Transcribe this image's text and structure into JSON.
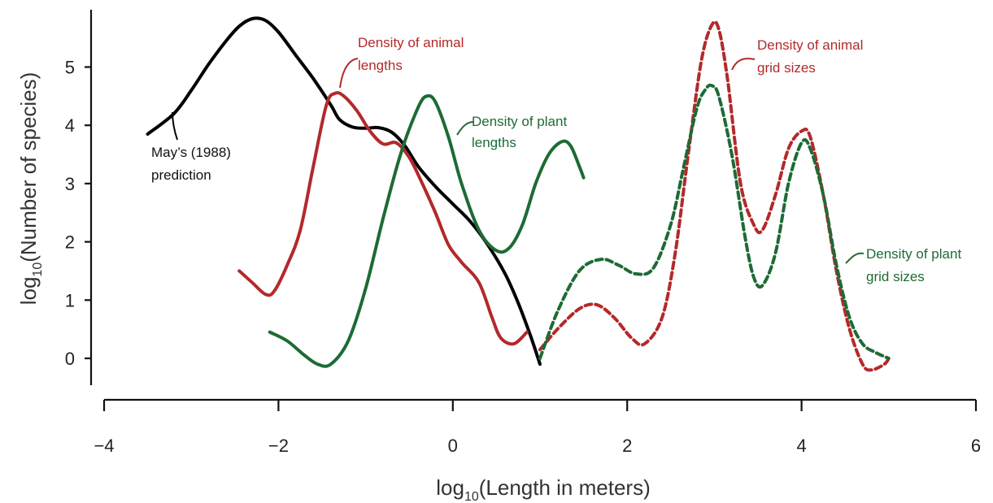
{
  "chart_data": {
    "type": "line",
    "xlabel": {
      "prefix": "log",
      "sub": "10",
      "suffix": "(Length in meters)"
    },
    "ylabel": {
      "prefix": "log",
      "sub": "10",
      "suffix": "(Number of species)"
    },
    "xlim": [
      -4,
      6
    ],
    "ylim": [
      -0.3,
      5.9
    ],
    "x_ticks": [
      -4,
      -2,
      0,
      2,
      4,
      6
    ],
    "x_tick_labels": [
      "−4",
      "−2",
      "0",
      "2",
      "4",
      "6"
    ],
    "y_ticks": [
      0,
      1,
      2,
      3,
      4,
      5
    ],
    "y_tick_labels": [
      "0",
      "1",
      "2",
      "3",
      "4",
      "5"
    ],
    "colors": {
      "black": "#000000",
      "red": "#b3292b",
      "green": "#1d6b35"
    },
    "series": [
      {
        "key": "may",
        "color": "black",
        "dashed": false,
        "label_lines": [
          "May’s (1988)",
          "prediction"
        ],
        "x": [
          -3.5,
          -3.2,
          -3.0,
          -2.8,
          -2.6,
          -2.45,
          -2.3,
          -2.15,
          -2.0,
          -1.8,
          -1.6,
          -1.4,
          -1.3,
          -1.15,
          -1.0,
          -0.85,
          -0.7,
          -0.55,
          -0.4,
          -0.2,
          0.0,
          0.2,
          0.4,
          0.6,
          0.75,
          0.9,
          1.0
        ],
        "y": [
          3.85,
          4.2,
          4.6,
          5.05,
          5.45,
          5.7,
          5.83,
          5.8,
          5.6,
          5.2,
          4.8,
          4.35,
          4.1,
          3.97,
          3.95,
          3.96,
          3.88,
          3.65,
          3.3,
          2.95,
          2.65,
          2.35,
          1.95,
          1.45,
          0.95,
          0.35,
          -0.1
        ]
      },
      {
        "key": "animal_lengths",
        "color": "red",
        "dashed": false,
        "label_lines": [
          "Density of animal",
          "lengths"
        ],
        "x": [
          -2.45,
          -2.3,
          -2.15,
          -2.05,
          -1.9,
          -1.75,
          -1.6,
          -1.45,
          -1.35,
          -1.25,
          -1.1,
          -0.95,
          -0.8,
          -0.65,
          -0.5,
          -0.35,
          -0.2,
          -0.05,
          0.1,
          0.3,
          0.45,
          0.55,
          0.7,
          0.85
        ],
        "y": [
          1.5,
          1.3,
          1.1,
          1.15,
          1.6,
          2.2,
          3.3,
          4.35,
          4.55,
          4.5,
          4.25,
          3.9,
          3.68,
          3.7,
          3.45,
          3.0,
          2.5,
          1.95,
          1.65,
          1.3,
          0.7,
          0.35,
          0.25,
          0.45
        ]
      },
      {
        "key": "plant_lengths",
        "color": "green",
        "dashed": false,
        "label_lines": [
          "Density of plant",
          "lengths"
        ],
        "x": [
          -2.1,
          -1.9,
          -1.7,
          -1.55,
          -1.4,
          -1.2,
          -1.0,
          -0.8,
          -0.6,
          -0.4,
          -0.3,
          -0.2,
          -0.05,
          0.1,
          0.3,
          0.5,
          0.65,
          0.8,
          0.95,
          1.1,
          1.25,
          1.35,
          1.45,
          1.5
        ],
        "y": [
          0.45,
          0.3,
          0.05,
          -0.1,
          -0.1,
          0.3,
          1.2,
          2.4,
          3.5,
          4.3,
          4.5,
          4.4,
          3.8,
          3.0,
          2.2,
          1.85,
          1.9,
          2.3,
          3.0,
          3.5,
          3.72,
          3.65,
          3.3,
          3.1
        ]
      },
      {
        "key": "animal_grid",
        "color": "red",
        "dashed": true,
        "label_lines": [
          "Density of animal",
          "grid sizes"
        ],
        "x": [
          1.0,
          1.2,
          1.45,
          1.65,
          1.85,
          2.05,
          2.2,
          2.4,
          2.55,
          2.7,
          2.85,
          2.97,
          3.05,
          3.15,
          3.3,
          3.45,
          3.55,
          3.7,
          3.85,
          4.0,
          4.1,
          4.25,
          4.4,
          4.55,
          4.7,
          4.8,
          4.95,
          5.0
        ],
        "y": [
          0.15,
          0.5,
          0.85,
          0.92,
          0.7,
          0.35,
          0.25,
          0.7,
          1.8,
          3.5,
          5.1,
          5.72,
          5.65,
          4.8,
          3.0,
          2.3,
          2.2,
          2.8,
          3.6,
          3.9,
          3.8,
          2.8,
          1.5,
          0.5,
          -0.1,
          -0.2,
          -0.1,
          0.0
        ]
      },
      {
        "key": "plant_grid",
        "color": "green",
        "dashed": true,
        "label_lines": [
          "Density of plant",
          "grid sizes"
        ],
        "x": [
          1.0,
          1.2,
          1.45,
          1.7,
          1.9,
          2.1,
          2.3,
          2.5,
          2.65,
          2.8,
          2.9,
          2.97,
          3.05,
          3.2,
          3.35,
          3.45,
          3.55,
          3.7,
          3.85,
          4.0,
          4.1,
          4.25,
          4.4,
          4.55,
          4.7,
          4.85,
          5.0
        ],
        "y": [
          0.0,
          0.8,
          1.5,
          1.7,
          1.6,
          1.45,
          1.55,
          2.3,
          3.3,
          4.3,
          4.62,
          4.68,
          4.5,
          3.5,
          2.1,
          1.4,
          1.25,
          1.8,
          3.0,
          3.7,
          3.6,
          2.8,
          1.6,
          0.7,
          0.25,
          0.1,
          0.0
        ]
      }
    ]
  }
}
